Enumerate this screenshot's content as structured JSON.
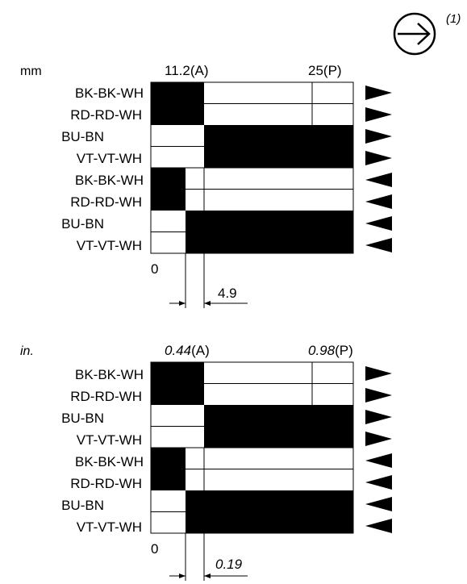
{
  "direction_note": "(1)",
  "mm_chart": {
    "unit": "mm",
    "label_a_value": "11.2",
    "label_a_suffix": "(A)",
    "label_p_value": "25",
    "label_p_suffix": "(P)",
    "zero": "0",
    "dimension": "4.9",
    "wires": [
      "BK-BK-WH",
      "RD-RD-WH",
      "BU-BN",
      "VT-VT-WH",
      "BK-BK-WH",
      "RD-RD-WH",
      "BU-BN",
      "VT-VT-WH"
    ]
  },
  "in_chart": {
    "unit": "in.",
    "label_a_value": "0.44",
    "label_a_suffix": "(A)",
    "label_p_value": "0.98",
    "label_p_suffix": "(P)",
    "zero": "0",
    "dimension": "0.19",
    "wires": [
      "BK-BK-WH",
      "RD-RD-WH",
      "BU-BN",
      "VT-VT-WH",
      "BK-BK-WH",
      "RD-RD-WH",
      "BU-BN",
      "VT-VT-WH"
    ]
  },
  "arrow_directions": [
    "right",
    "right",
    "right",
    "right",
    "left",
    "left",
    "left",
    "left"
  ]
}
